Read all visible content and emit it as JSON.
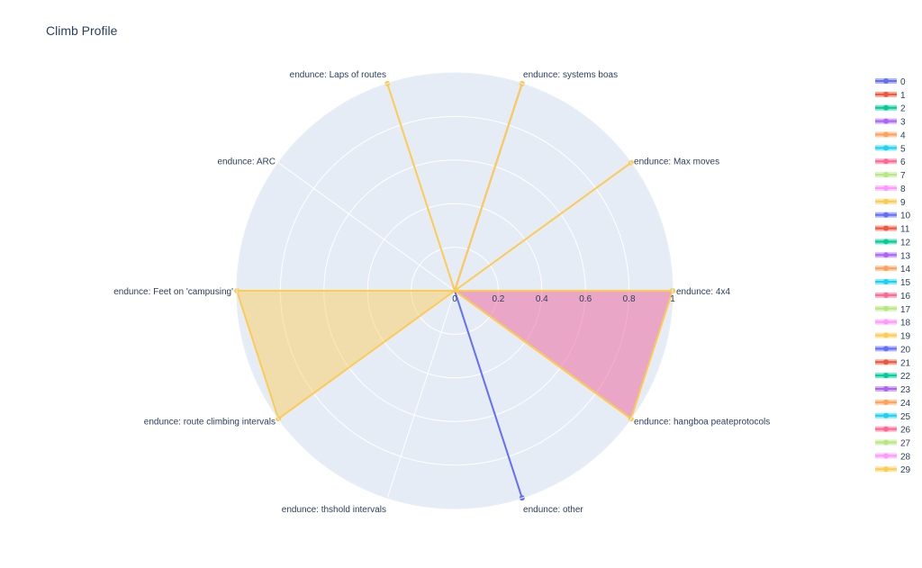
{
  "chart_data": {
    "type": "radar",
    "title": "Climb Profile",
    "radial_range": [
      0,
      1
    ],
    "radial_ticks": [
      "0",
      "0.2",
      "0.4",
      "0.6",
      "0.8",
      "1"
    ],
    "categories": [
      "endunce: 4x4",
      "endunce: systems boas",
      "endunce: Laps of routes",
      "endunce: ARC",
      "endunce: Feet on 'campusing'",
      "endunce: route climbing intervals",
      "endunce: thshold intervals",
      "endunce: other",
      "endunce: hangboa peateprotocols",
      "endunce: Max moves"
    ],
    "category_angles_deg": [
      0,
      72,
      108,
      144,
      180,
      216,
      252,
      288,
      324,
      36
    ],
    "legend": [
      "0",
      "1",
      "2",
      "3",
      "4",
      "5",
      "6",
      "7",
      "8",
      "9",
      "10",
      "11",
      "12",
      "13",
      "14",
      "15",
      "16",
      "17",
      "18",
      "19",
      "20",
      "21",
      "22",
      "23",
      "24",
      "25",
      "26",
      "27",
      "28",
      "29"
    ],
    "legend_colors": [
      "#636efa",
      "#EF553B",
      "#00cc96",
      "#ab63fa",
      "#FFA15A",
      "#19d3f3",
      "#FF6692",
      "#B6E880",
      "#FF97FF",
      "#FECB52"
    ],
    "series": [
      {
        "name": "0",
        "values": [
          0,
          0,
          0,
          0,
          0,
          0,
          0,
          1,
          0,
          0
        ],
        "fill": false
      },
      {
        "name": "2",
        "values": [
          1,
          0,
          0,
          0,
          0,
          0,
          0,
          0,
          0,
          0
        ],
        "fill": false
      },
      {
        "name": "16",
        "values": [
          1,
          0,
          0,
          0,
          0,
          0,
          0,
          0,
          1,
          0
        ],
        "fill": true
      },
      {
        "name": "19",
        "values": [
          0,
          0,
          1,
          0,
          1,
          1,
          0,
          0,
          1,
          1
        ],
        "fill": true
      },
      {
        "name": "9",
        "values": [
          0,
          1,
          0,
          0,
          0,
          0,
          0,
          0,
          0,
          0
        ],
        "fill": false
      },
      {
        "name": "29",
        "values": [
          0,
          1,
          0,
          0,
          0,
          0,
          0,
          0,
          0,
          0
        ],
        "fill": false
      }
    ]
  }
}
